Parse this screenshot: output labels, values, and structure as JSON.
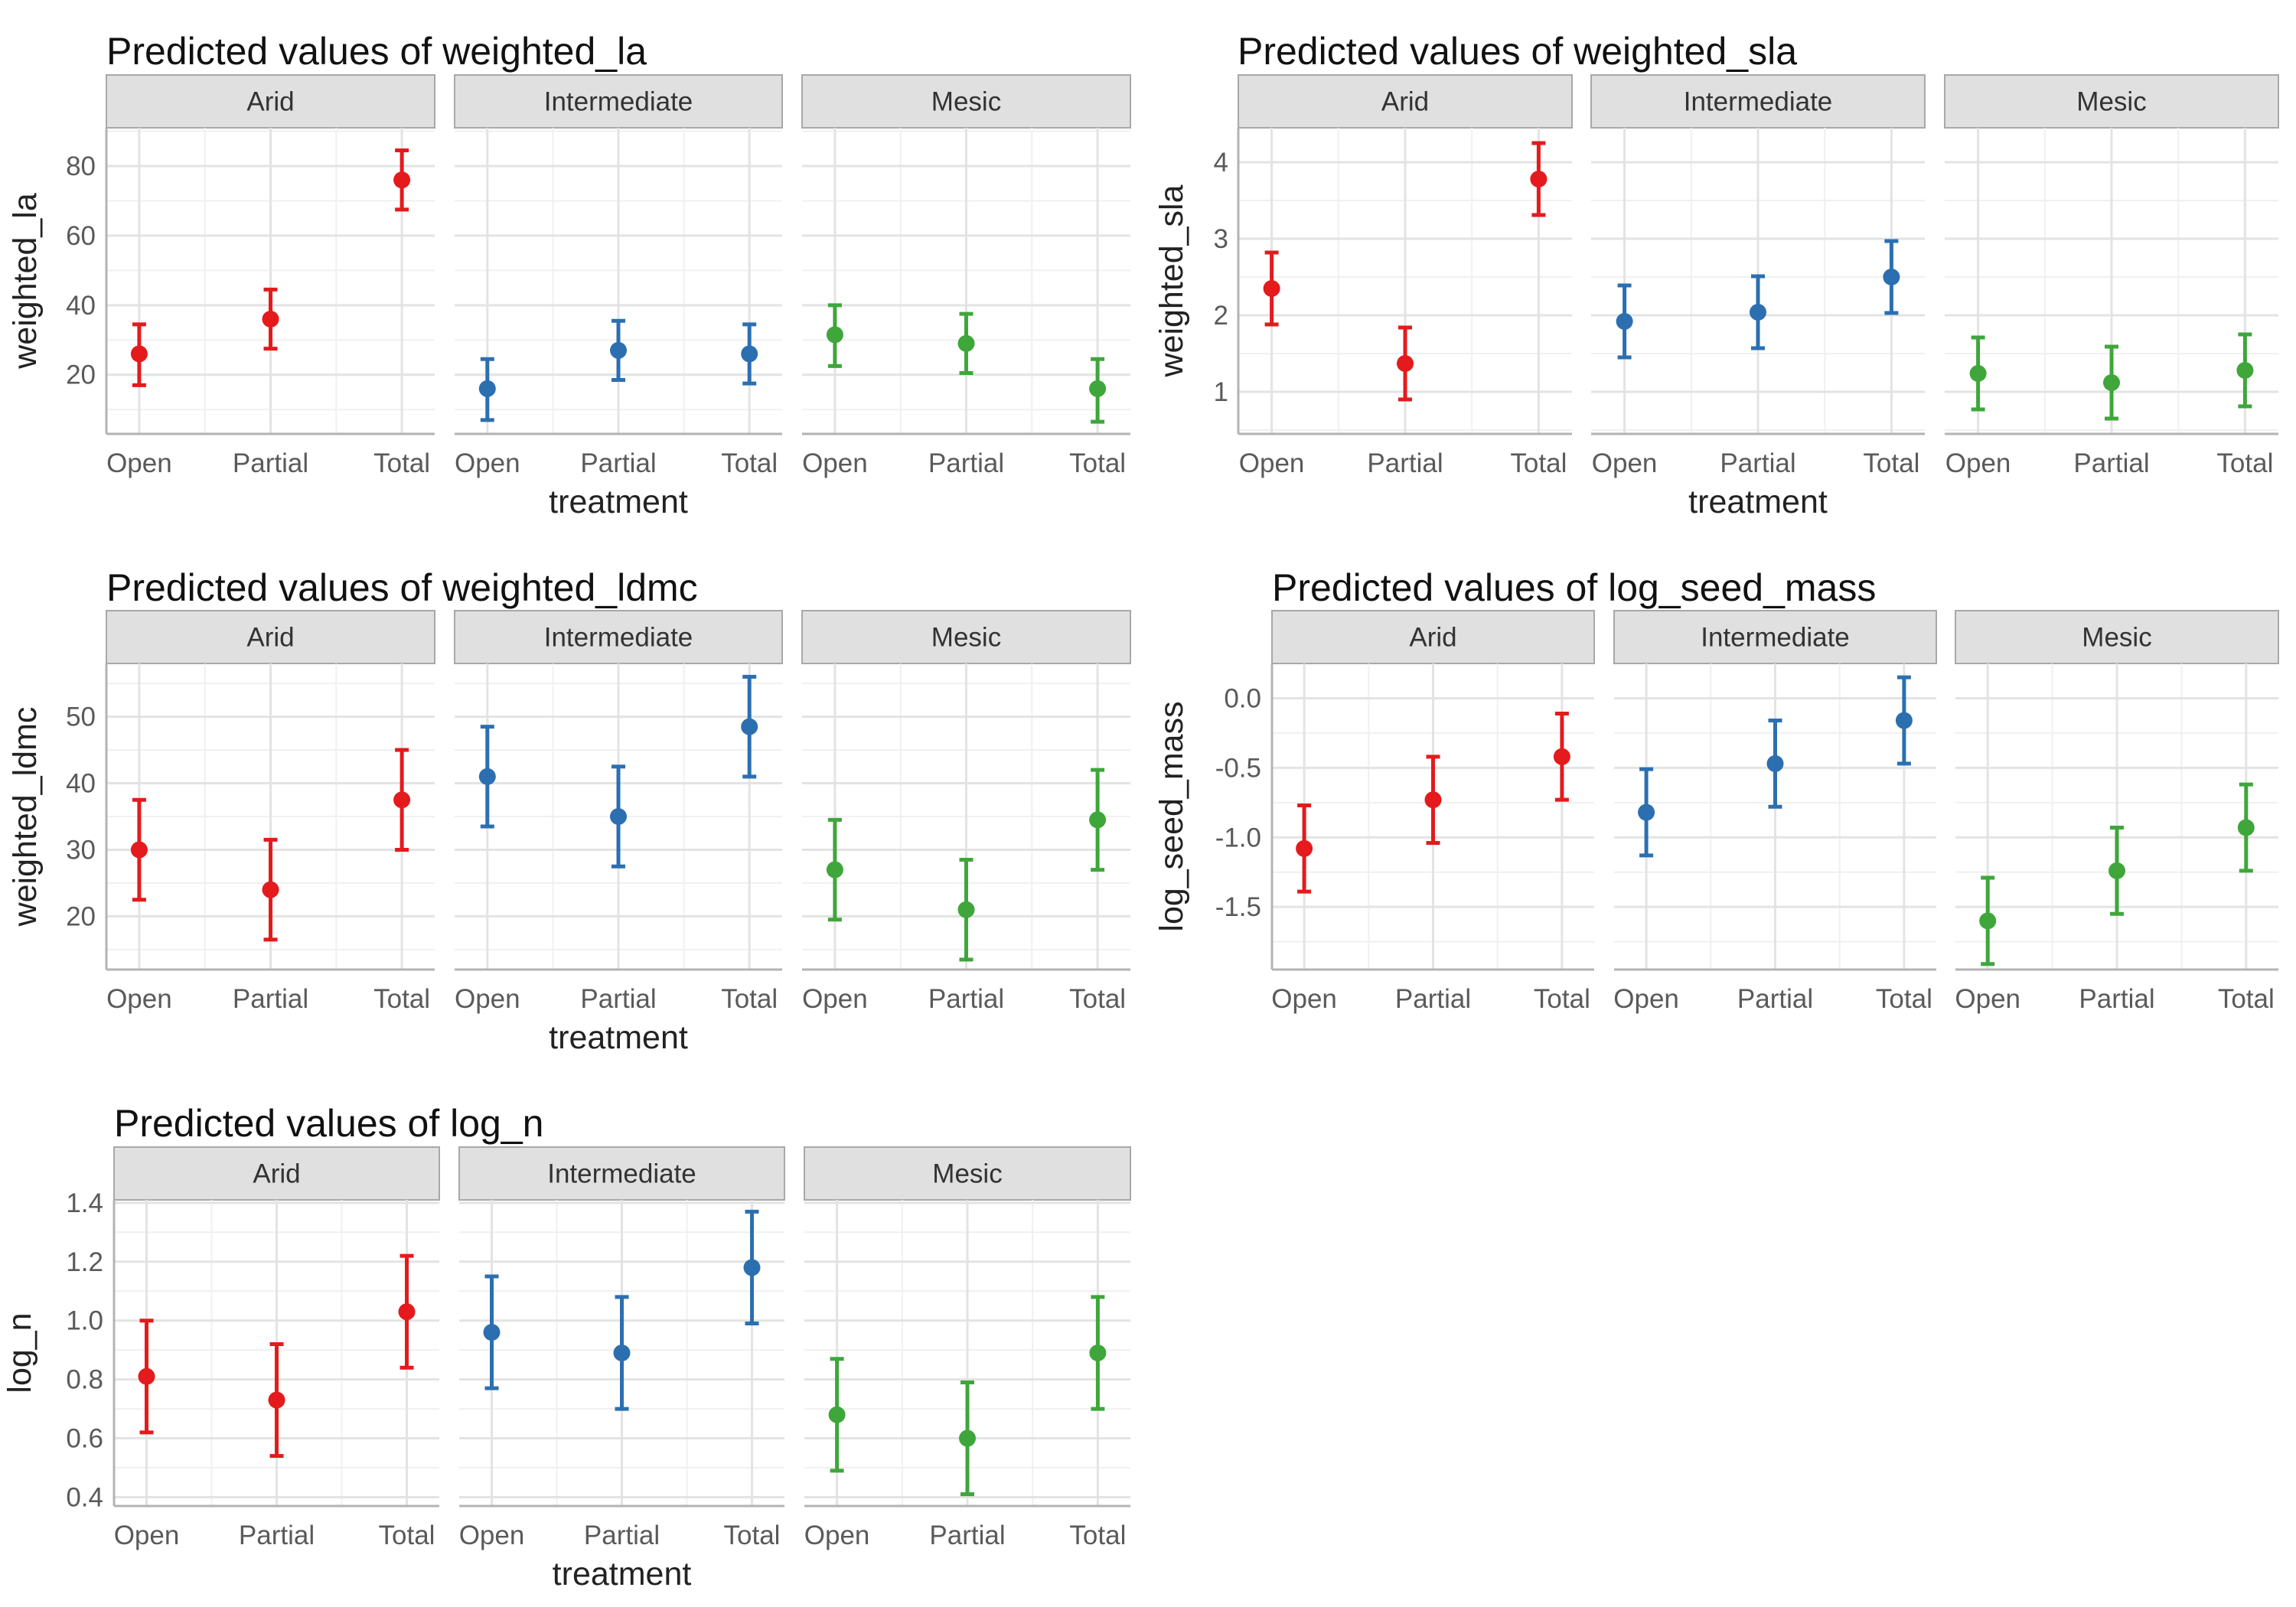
{
  "chart_data": [
    {
      "type": "scatter",
      "title": "Predicted values of weighted_la",
      "xlabel": "treatment",
      "ylabel": "weighted_la",
      "categories": [
        "Open",
        "Partial",
        "Total"
      ],
      "yticks": [
        "20",
        "40",
        "60",
        "80"
      ],
      "ylim": [
        3,
        91
      ],
      "grid": true,
      "panels": [
        {
          "name": "Arid",
          "color": "#e41a1c",
          "values": [
            26,
            36,
            76
          ],
          "lower": [
            17,
            27.5,
            67.5
          ],
          "upper": [
            34.5,
            44.5,
            84.5
          ]
        },
        {
          "name": "Intermediate",
          "color": "#2c6fb0",
          "values": [
            16,
            27,
            26
          ],
          "lower": [
            7,
            18.5,
            17.5
          ],
          "upper": [
            24.5,
            35.5,
            34.5
          ]
        },
        {
          "name": "Mesic",
          "color": "#3ea63a",
          "values": [
            31.5,
            29,
            16
          ],
          "lower": [
            22.5,
            20.5,
            6.5
          ],
          "upper": [
            40,
            37.5,
            24.5
          ]
        }
      ]
    },
    {
      "type": "scatter",
      "title": "Predicted values of weighted_sla",
      "xlabel": "treatment",
      "ylabel": "weighted_sla",
      "categories": [
        "Open",
        "Partial",
        "Total"
      ],
      "yticks": [
        "1",
        "2",
        "3",
        "4"
      ],
      "ylim": [
        0.45,
        4.45
      ],
      "grid": true,
      "panels": [
        {
          "name": "Arid",
          "color": "#e41a1c",
          "values": [
            2.35,
            1.37,
            3.78
          ],
          "lower": [
            1.88,
            0.9,
            3.31
          ],
          "upper": [
            2.82,
            1.84,
            4.25
          ]
        },
        {
          "name": "Intermediate",
          "color": "#2c6fb0",
          "values": [
            1.92,
            2.04,
            2.5
          ],
          "lower": [
            1.45,
            1.57,
            2.03
          ],
          "upper": [
            2.39,
            2.51,
            2.97
          ]
        },
        {
          "name": "Mesic",
          "color": "#3ea63a",
          "values": [
            1.24,
            1.12,
            1.28
          ],
          "lower": [
            0.77,
            0.65,
            0.81
          ],
          "upper": [
            1.71,
            1.59,
            1.75
          ]
        }
      ]
    },
    {
      "type": "scatter",
      "title": "Predicted values of weighted_ldmc",
      "xlabel": "treatment",
      "ylabel": "weighted_ldmc",
      "categories": [
        "Open",
        "Partial",
        "Total"
      ],
      "yticks": [
        "20",
        "30",
        "40",
        "50"
      ],
      "ylim": [
        12,
        58
      ],
      "grid": true,
      "panels": [
        {
          "name": "Arid",
          "color": "#e41a1c",
          "values": [
            30,
            24,
            37.5
          ],
          "lower": [
            22.5,
            16.5,
            30
          ],
          "upper": [
            37.5,
            31.5,
            45
          ]
        },
        {
          "name": "Intermediate",
          "color": "#2c6fb0",
          "values": [
            41,
            35,
            48.5
          ],
          "lower": [
            33.5,
            27.5,
            41
          ],
          "upper": [
            48.5,
            42.5,
            56
          ]
        },
        {
          "name": "Mesic",
          "color": "#3ea63a",
          "values": [
            27,
            21,
            34.5
          ],
          "lower": [
            19.5,
            13.5,
            27
          ],
          "upper": [
            34.5,
            28.5,
            42
          ]
        }
      ]
    },
    {
      "type": "scatter",
      "title": "Predicted values of log_seed_mass",
      "xlabel": "",
      "ylabel": "log_seed_mass",
      "categories": [
        "Open",
        "Partial",
        "Total"
      ],
      "yticks": [
        "0.0",
        "-0.5",
        "-1.0",
        "-1.5"
      ],
      "ylim": [
        -1.95,
        0.25
      ],
      "grid": true,
      "panels": [
        {
          "name": "Arid",
          "color": "#e41a1c",
          "values": [
            -1.08,
            -0.73,
            -0.42
          ],
          "lower": [
            -1.39,
            -1.04,
            -0.73
          ],
          "upper": [
            -0.77,
            -0.42,
            -0.11
          ]
        },
        {
          "name": "Intermediate",
          "color": "#2c6fb0",
          "values": [
            -0.82,
            -0.47,
            -0.16
          ],
          "lower": [
            -1.13,
            -0.78,
            -0.47
          ],
          "upper": [
            -0.51,
            -0.16,
            0.15
          ]
        },
        {
          "name": "Mesic",
          "color": "#3ea63a",
          "values": [
            -1.6,
            -1.24,
            -0.93
          ],
          "lower": [
            -1.91,
            -1.55,
            -1.24
          ],
          "upper": [
            -1.29,
            -0.93,
            -0.62
          ]
        }
      ]
    },
    {
      "type": "scatter",
      "title": "Predicted values of log_n",
      "xlabel": "treatment",
      "ylabel": "log_n",
      "categories": [
        "Open",
        "Partial",
        "Total"
      ],
      "yticks": [
        "0.4",
        "0.6",
        "0.8",
        "1.0",
        "1.2",
        "1.4"
      ],
      "ylim": [
        0.37,
        1.41
      ],
      "grid": true,
      "panels": [
        {
          "name": "Arid",
          "color": "#e41a1c",
          "values": [
            0.81,
            0.73,
            1.03
          ],
          "lower": [
            0.62,
            0.54,
            0.84
          ],
          "upper": [
            1.0,
            0.92,
            1.22
          ]
        },
        {
          "name": "Intermediate",
          "color": "#2c6fb0",
          "values": [
            0.96,
            0.89,
            1.18
          ],
          "lower": [
            0.77,
            0.7,
            0.99
          ],
          "upper": [
            1.15,
            1.08,
            1.37
          ]
        },
        {
          "name": "Mesic",
          "color": "#3ea63a",
          "values": [
            0.68,
            0.6,
            0.89
          ],
          "lower": [
            0.49,
            0.41,
            0.7
          ],
          "upper": [
            0.87,
            0.79,
            1.08
          ]
        }
      ]
    }
  ]
}
